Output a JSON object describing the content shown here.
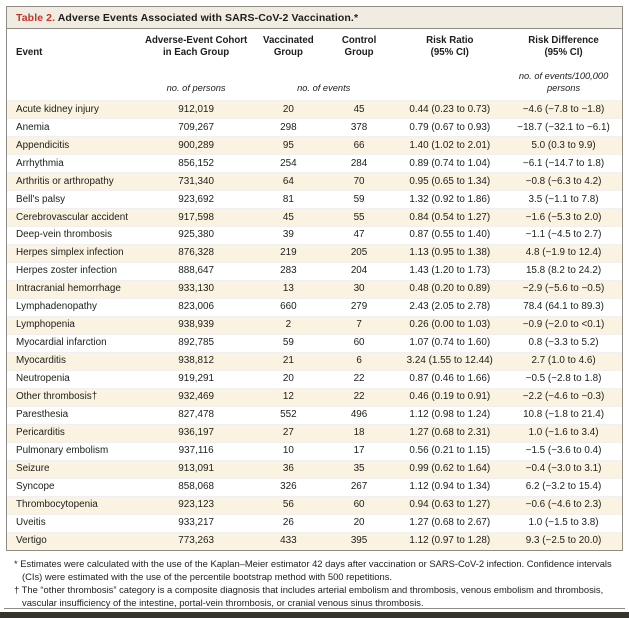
{
  "title": {
    "prefix": "Table 2.",
    "text": " Adverse Events Associated with SARS-CoV-2 Vaccination.*"
  },
  "accent_colors": {
    "title_red": "#c0362c",
    "stripe_cream": "#fbf3e1",
    "title_bar_bg": "#f0ece1",
    "border_gray": "#8e8c84",
    "bottom_bar": "#37342c"
  },
  "table": {
    "headers": {
      "event": "Event",
      "cohort": "Adverse-Event Cohort\nin Each Group",
      "vaccinated": "Vaccinated\nGroup",
      "control": "Control\nGroup",
      "risk_ratio": "Risk Ratio\n(95% CI)",
      "risk_difference": "Risk Difference\n(95% CI)"
    },
    "units": {
      "cohort": "no. of persons",
      "events": "no. of events",
      "risk_difference": "no. of events/100,000\npersons"
    },
    "rows": [
      {
        "event": "Acute kidney injury",
        "cohort": "912,019",
        "vaccinated": "20",
        "control": "45",
        "risk_ratio": "0.44 (0.23 to 0.73)",
        "risk_difference": "−4.6 (−7.8 to −1.8)"
      },
      {
        "event": "Anemia",
        "cohort": "709,267",
        "vaccinated": "298",
        "control": "378",
        "risk_ratio": "0.79 (0.67 to 0.93)",
        "risk_difference": "−18.7 (−32.1 to −6.1)"
      },
      {
        "event": "Appendicitis",
        "cohort": "900,289",
        "vaccinated": "95",
        "control": "66",
        "risk_ratio": "1.40 (1.02 to 2.01)",
        "risk_difference": "5.0 (0.3 to 9.9)"
      },
      {
        "event": "Arrhythmia",
        "cohort": "856,152",
        "vaccinated": "254",
        "control": "284",
        "risk_ratio": "0.89 (0.74 to 1.04)",
        "risk_difference": "−6.1 (−14.7 to 1.8)"
      },
      {
        "event": "Arthritis or arthropathy",
        "cohort": "731,340",
        "vaccinated": "64",
        "control": "70",
        "risk_ratio": "0.95 (0.65 to 1.34)",
        "risk_difference": "−0.8 (−6.3 to 4.2)"
      },
      {
        "event": "Bell's palsy",
        "cohort": "923,692",
        "vaccinated": "81",
        "control": "59",
        "risk_ratio": "1.32 (0.92 to 1.86)",
        "risk_difference": "3.5 (−1.1 to 7.8)"
      },
      {
        "event": "Cerebrovascular accident",
        "cohort": "917,598",
        "vaccinated": "45",
        "control": "55",
        "risk_ratio": "0.84 (0.54 to 1.27)",
        "risk_difference": "−1.6 (−5.3 to 2.0)"
      },
      {
        "event": "Deep-vein thrombosis",
        "cohort": "925,380",
        "vaccinated": "39",
        "control": "47",
        "risk_ratio": "0.87 (0.55 to 1.40)",
        "risk_difference": "−1.1 (−4.5 to 2.7)"
      },
      {
        "event": "Herpes simplex infection",
        "cohort": "876,328",
        "vaccinated": "219",
        "control": "205",
        "risk_ratio": "1.13 (0.95 to 1.38)",
        "risk_difference": "4.8 (−1.9 to 12.4)"
      },
      {
        "event": "Herpes zoster infection",
        "cohort": "888,647",
        "vaccinated": "283",
        "control": "204",
        "risk_ratio": "1.43 (1.20 to 1.73)",
        "risk_difference": "15.8 (8.2 to 24.2)"
      },
      {
        "event": "Intracranial hemorrhage",
        "cohort": "933,130",
        "vaccinated": "13",
        "control": "30",
        "risk_ratio": "0.48 (0.20 to 0.89)",
        "risk_difference": "−2.9 (−5.6 to −0.5)"
      },
      {
        "event": "Lymphadenopathy",
        "cohort": "823,006",
        "vaccinated": "660",
        "control": "279",
        "risk_ratio": "2.43 (2.05 to 2.78)",
        "risk_difference": "78.4 (64.1 to 89.3)"
      },
      {
        "event": "Lymphopenia",
        "cohort": "938,939",
        "vaccinated": "2",
        "control": "7",
        "risk_ratio": "0.26 (0.00 to 1.03)",
        "risk_difference": "−0.9 (−2.0 to <0.1)"
      },
      {
        "event": "Myocardial infarction",
        "cohort": "892,785",
        "vaccinated": "59",
        "control": "60",
        "risk_ratio": "1.07 (0.74 to 1.60)",
        "risk_difference": "0.8 (−3.3 to 5.2)"
      },
      {
        "event": "Myocarditis",
        "cohort": "938,812",
        "vaccinated": "21",
        "control": "6",
        "risk_ratio": "3.24 (1.55 to 12.44)",
        "risk_difference": "2.7 (1.0 to 4.6)"
      },
      {
        "event": "Neutropenia",
        "cohort": "919,291",
        "vaccinated": "20",
        "control": "22",
        "risk_ratio": "0.87 (0.46 to 1.66)",
        "risk_difference": "−0.5 (−2.8 to 1.8)"
      },
      {
        "event": "Other thrombosis†",
        "cohort": "932,469",
        "vaccinated": "12",
        "control": "22",
        "risk_ratio": "0.46 (0.19 to 0.91)",
        "risk_difference": "−2.2 (−4.6 to −0.3)"
      },
      {
        "event": "Paresthesia",
        "cohort": "827,478",
        "vaccinated": "552",
        "control": "496",
        "risk_ratio": "1.12 (0.98 to 1.24)",
        "risk_difference": "10.8 (−1.8 to 21.4)"
      },
      {
        "event": "Pericarditis",
        "cohort": "936,197",
        "vaccinated": "27",
        "control": "18",
        "risk_ratio": "1.27 (0.68 to 2.31)",
        "risk_difference": "1.0 (−1.6 to 3.4)"
      },
      {
        "event": "Pulmonary embolism",
        "cohort": "937,116",
        "vaccinated": "10",
        "control": "17",
        "risk_ratio": "0.56 (0.21 to 1.15)",
        "risk_difference": "−1.5 (−3.6 to 0.4)"
      },
      {
        "event": "Seizure",
        "cohort": "913,091",
        "vaccinated": "36",
        "control": "35",
        "risk_ratio": "0.99 (0.62 to 1.64)",
        "risk_difference": "−0.4 (−3.0 to 3.1)"
      },
      {
        "event": "Syncope",
        "cohort": "858,068",
        "vaccinated": "326",
        "control": "267",
        "risk_ratio": "1.12 (0.94 to 1.34)",
        "risk_difference": "6.2 (−3.2 to 15.4)"
      },
      {
        "event": "Thrombocytopenia",
        "cohort": "923,123",
        "vaccinated": "56",
        "control": "60",
        "risk_ratio": "0.94 (0.63 to 1.27)",
        "risk_difference": "−0.6 (−4.6 to 2.3)"
      },
      {
        "event": "Uveitis",
        "cohort": "933,217",
        "vaccinated": "26",
        "control": "20",
        "risk_ratio": "1.27 (0.68 to 2.67)",
        "risk_difference": "1.0 (−1.5 to 3.8)"
      },
      {
        "event": "Vertigo",
        "cohort": "773,263",
        "vaccinated": "433",
        "control": "395",
        "risk_ratio": "1.12 (0.97 to 1.28)",
        "risk_difference": "9.3 (−2.5 to 20.0)"
      }
    ]
  },
  "footnotes": [
    {
      "marker": "*",
      "text": " Estimates were calculated with the use of the Kaplan–Meier estimator 42 days after vaccination or SARS-CoV-2 infection. Confidence intervals (CIs) were estimated with the use of the percentile bootstrap method with 500 repetitions."
    },
    {
      "marker": "†",
      "text": " The “other thrombosis” category is a composite diagnosis that includes arterial embolism and thrombosis, venous embolism and thrombosis, vascular insufficiency of the intestine, portal-vein thrombosis, or cranial venous sinus thrombosis."
    }
  ]
}
